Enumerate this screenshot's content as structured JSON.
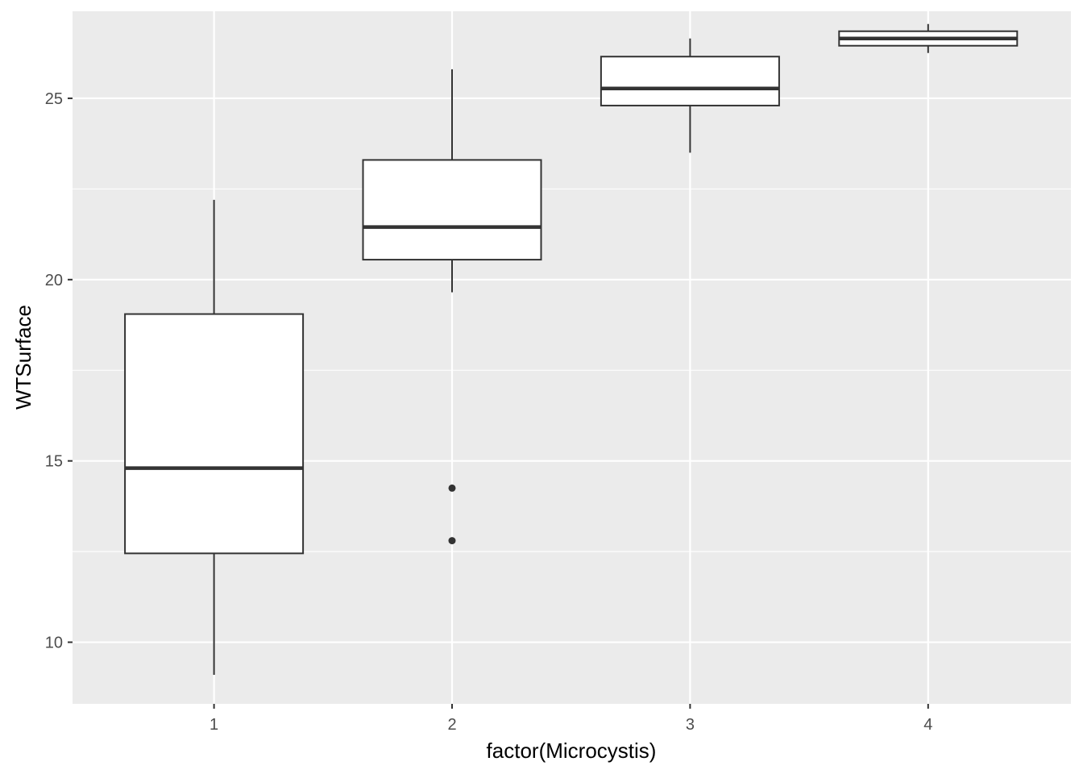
{
  "chart_data": {
    "type": "boxplot",
    "xlabel": "factor(Microcystis)",
    "ylabel": "WTSurface",
    "categories": [
      "1",
      "2",
      "3",
      "4"
    ],
    "ylim": [
      8.3,
      27.4
    ],
    "y_ticks": [
      10,
      15,
      20,
      25
    ],
    "grid": true,
    "colors": {
      "panel_background": "#ebebeb",
      "grid_line": "#ffffff",
      "box_fill": "#ffffff",
      "box_stroke": "#333333",
      "tick_label": "#4d4d4d",
      "axis_title": "#000000"
    },
    "boxes": [
      {
        "category": "1",
        "lower_whisker": 9.1,
        "q1": 12.45,
        "median": 14.8,
        "q3": 19.05,
        "upper_whisker": 22.2,
        "outliers": []
      },
      {
        "category": "2",
        "lower_whisker": 19.65,
        "q1": 20.55,
        "median": 21.45,
        "q3": 23.3,
        "upper_whisker": 25.8,
        "outliers": [
          14.25,
          12.8
        ]
      },
      {
        "category": "3",
        "lower_whisker": 23.5,
        "q1": 24.8,
        "median": 25.27,
        "q3": 26.15,
        "upper_whisker": 26.65,
        "outliers": []
      },
      {
        "category": "4",
        "lower_whisker": 26.25,
        "q1": 26.45,
        "median": 26.65,
        "q3": 26.85,
        "upper_whisker": 27.05,
        "outliers": []
      }
    ]
  }
}
